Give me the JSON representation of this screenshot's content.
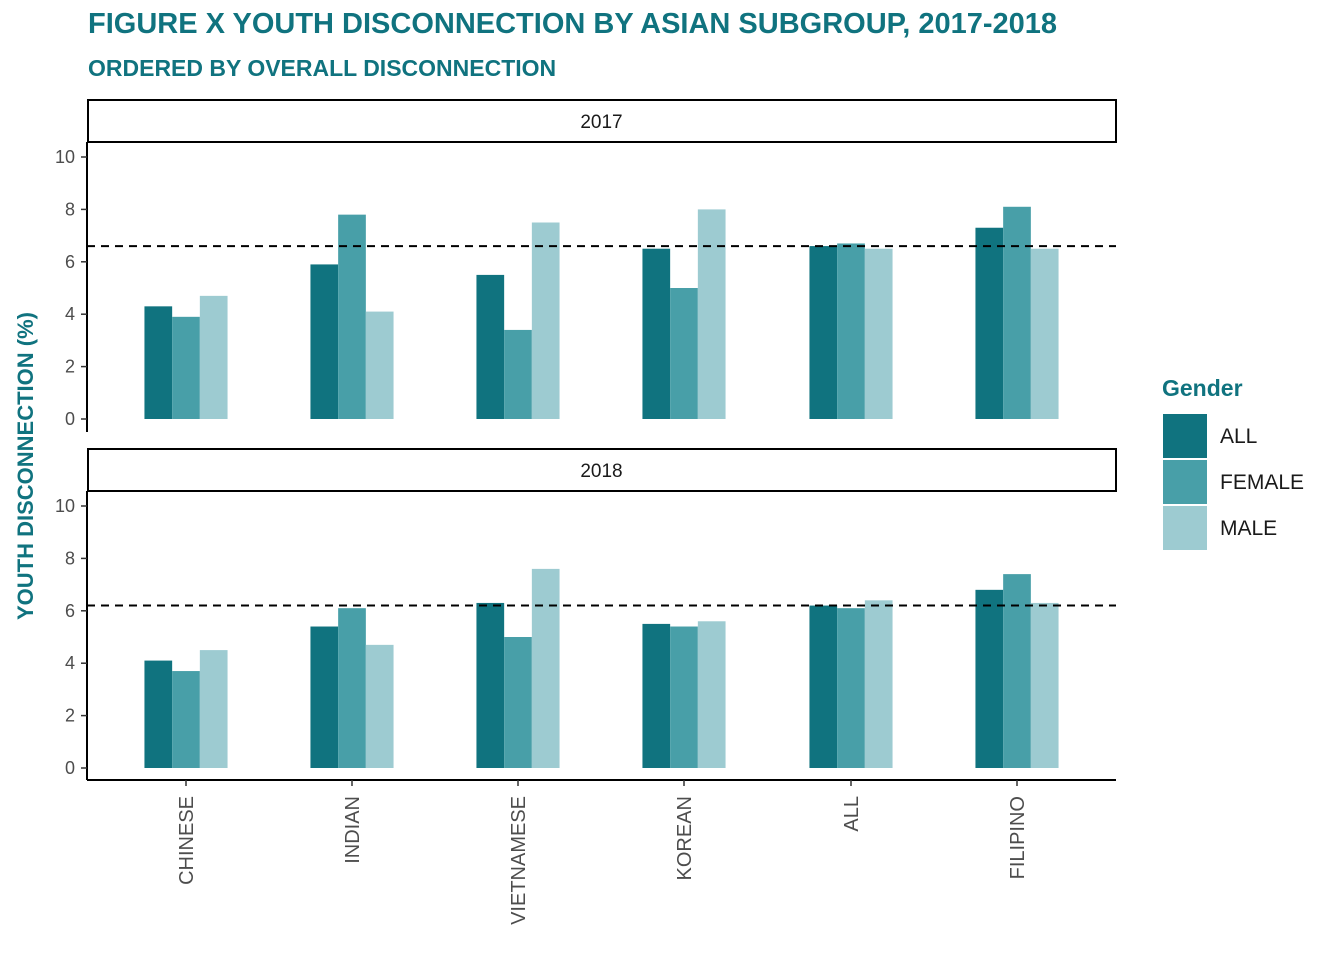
{
  "chart_data": {
    "type": "bar",
    "title": "FIGURE X YOUTH DISCONNECTION BY ASIAN SUBGROUP, 2017-2018",
    "subtitle": "ORDERED BY OVERALL DISCONNECTION",
    "ylabel": "YOUTH DISCONNECTION (%)",
    "xlabel": "",
    "ylim": [
      0,
      10
    ],
    "yticks": [
      "0",
      "2",
      "4",
      "6",
      "8",
      "10"
    ],
    "categories": [
      "CHINESE",
      "INDIAN",
      "VIETNAMESE",
      "KOREAN",
      "ALL",
      "FILIPINO"
    ],
    "legend": {
      "title": "Gender",
      "placement": "right",
      "entries": [
        "ALL",
        "FEMALE",
        "MALE"
      ]
    },
    "colors": {
      "ALL": "#10737f",
      "FEMALE": "#489fa8",
      "MALE": "#9dcbd1"
    },
    "panels": [
      {
        "label": "2017",
        "reference_line": 6.6,
        "series": [
          {
            "name": "ALL",
            "values": [
              4.3,
              5.9,
              5.5,
              6.5,
              6.6,
              7.3
            ]
          },
          {
            "name": "FEMALE",
            "values": [
              3.9,
              7.8,
              3.4,
              5.0,
              6.7,
              8.1
            ]
          },
          {
            "name": "MALE",
            "values": [
              4.7,
              4.1,
              7.5,
              8.0,
              6.5,
              6.5
            ]
          }
        ]
      },
      {
        "label": "2018",
        "reference_line": 6.2,
        "series": [
          {
            "name": "ALL",
            "values": [
              4.1,
              5.4,
              6.3,
              5.5,
              6.2,
              6.8
            ]
          },
          {
            "name": "FEMALE",
            "values": [
              3.7,
              6.1,
              5.0,
              5.4,
              6.1,
              7.4
            ]
          },
          {
            "name": "MALE",
            "values": [
              4.5,
              4.7,
              7.6,
              5.6,
              6.4,
              6.3
            ]
          }
        ]
      }
    ]
  }
}
